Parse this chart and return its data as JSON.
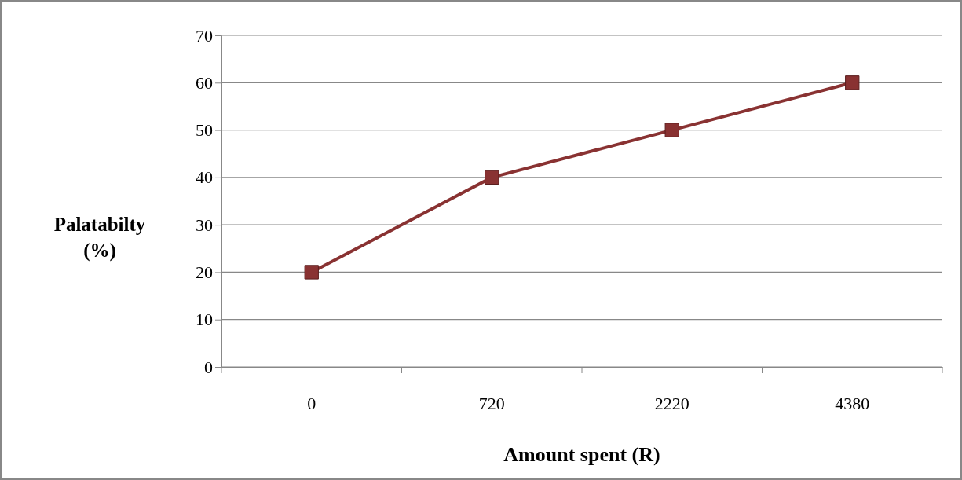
{
  "chart_data": {
    "type": "line",
    "xlabel": "Amount spent (R)",
    "ylabel": "Palatabilty (%)",
    "categories": [
      "0",
      "720",
      "2220",
      "4380"
    ],
    "series": [
      {
        "color": "#893232",
        "values": [
          20,
          40,
          50,
          60
        ]
      }
    ],
    "ylim": [
      0,
      70
    ],
    "yticks": [
      0,
      10,
      20,
      30,
      40,
      50,
      60,
      70
    ],
    "grid": "y",
    "marker": "square",
    "line_style": "solid",
    "legend": false
  }
}
